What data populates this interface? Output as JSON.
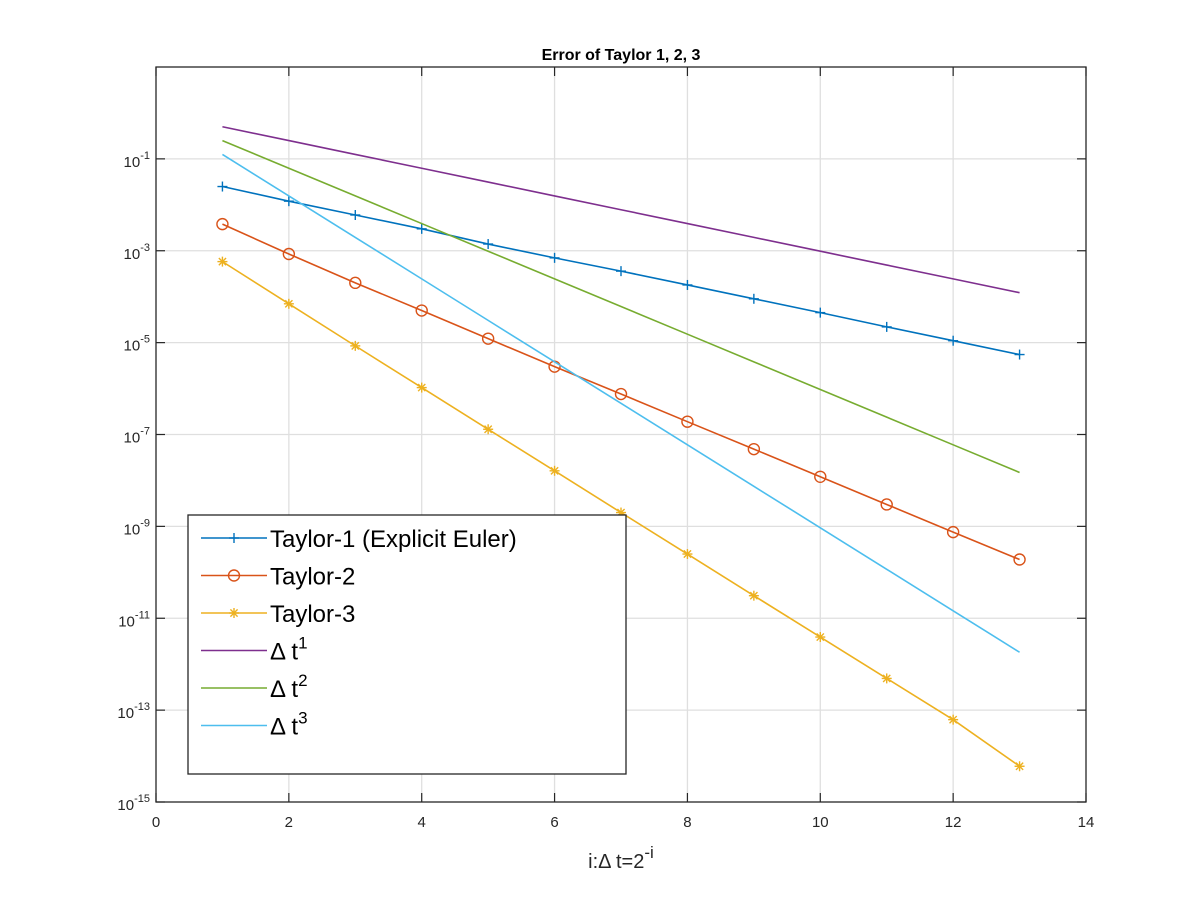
{
  "chart_data": {
    "type": "line",
    "title": "Error of Taylor 1, 2, 3",
    "xlabel_parts": [
      "i:",
      "Δ",
      " t=2",
      "-i"
    ],
    "ylabel": "",
    "yscale": "log",
    "xlim": [
      0,
      14
    ],
    "ylim_exp": [
      -15,
      1
    ],
    "xticks": [
      0,
      2,
      4,
      6,
      8,
      10,
      12,
      14
    ],
    "yticks_exp": [
      -15,
      -13,
      -11,
      -9,
      -7,
      -5,
      -3,
      -1
    ],
    "ytick_base": "10",
    "grid": true,
    "legend_position": "bottom-left",
    "x": [
      1,
      2,
      3,
      4,
      5,
      6,
      7,
      8,
      9,
      10,
      11,
      12,
      13
    ],
    "series": [
      {
        "name": "Taylor-1 (Explicit Euler)",
        "color": "#0072BD",
        "marker": "plus",
        "values": [
          0.025,
          0.012,
          0.006,
          0.003,
          0.0014,
          0.0007,
          0.00036,
          0.00018,
          9e-05,
          4.5e-05,
          2.2e-05,
          1.1e-05,
          5.5e-06
        ]
      },
      {
        "name": "Taylor-2",
        "color": "#D95319",
        "marker": "circle",
        "values": [
          0.0038,
          0.00085,
          0.0002,
          5e-05,
          1.22e-05,
          3e-06,
          7.6e-07,
          1.9e-07,
          4.8e-08,
          1.2e-08,
          3e-09,
          7.5e-10,
          1.9e-10
        ]
      },
      {
        "name": "Taylor-3",
        "color": "#EDB120",
        "marker": "asterisk",
        "values": [
          0.00058,
          7e-05,
          8.5e-06,
          1.05e-06,
          1.3e-07,
          1.62e-08,
          2e-09,
          2.5e-10,
          3.1e-11,
          3.9e-12,
          4.9e-13,
          6.2e-14,
          6e-15
        ]
      },
      {
        "name": "Δ t¹",
        "name_parts": [
          "Δ",
          " t",
          "1"
        ],
        "color": "#7E2F8E",
        "marker": "none",
        "values": [
          0.5,
          0.25,
          0.125,
          0.0625,
          0.03125,
          0.015625,
          0.0078125,
          0.00390625,
          0.001953125,
          0.0009765625,
          0.00048828125,
          0.000244140625,
          0.0001220703125
        ]
      },
      {
        "name": "Δ t²",
        "name_parts": [
          "Δ",
          " t",
          "2"
        ],
        "color": "#77AC30",
        "marker": "none",
        "values": [
          0.25,
          0.0625,
          0.015625,
          0.00390625,
          0.0009765625,
          0.000244140625,
          6.103515625e-05,
          1.52587890625e-05,
          3.814697265625e-06,
          9.5367431640625e-07,
          2.384185791015625e-07,
          5.960464477539063e-08,
          1.4901161193847656e-08
        ]
      },
      {
        "name": "Δ t³",
        "name_parts": [
          "Δ",
          " t",
          "3"
        ],
        "color": "#4DBEEE",
        "marker": "none",
        "values": [
          0.125,
          0.015625,
          0.001953125,
          0.000244140625,
          3.0517578125e-05,
          3.814697265625e-06,
          4.76837158203125e-07,
          5.960464477539063e-08,
          7.450580596923828e-09,
          9.313225746154785e-10,
          1.1641532182693481e-10,
          1.4551915228366852e-11,
          1.8189894035458565e-12
        ]
      }
    ]
  }
}
